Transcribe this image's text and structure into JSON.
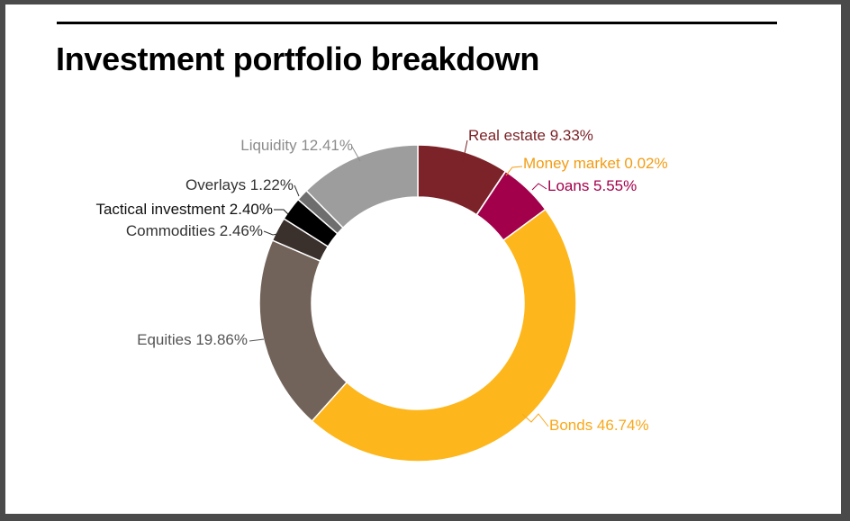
{
  "title": "Investment portfolio breakdown",
  "chart_data": {
    "type": "pie",
    "donut": true,
    "title": "Investment portfolio breakdown",
    "legend": "none",
    "slices": [
      {
        "label": "Real estate",
        "display": "Real estate 9.33%",
        "value": 9.33,
        "color": "#7b2328"
      },
      {
        "label": "Money market",
        "display": "Money market 0.02%",
        "value": 0.02,
        "color": "#f39c12"
      },
      {
        "label": "Loans",
        "display": "Loans 5.55%",
        "value": 5.55,
        "color": "#a3004b"
      },
      {
        "label": "Bonds",
        "display": "Bonds 46.74%",
        "value": 46.74,
        "color": "#fdb71c"
      },
      {
        "label": "Equities",
        "display": "Equities 19.86%",
        "value": 19.86,
        "color": "#72635a"
      },
      {
        "label": "Commodities",
        "display": "Commodities 2.46%",
        "value": 2.46,
        "color": "#3a302c"
      },
      {
        "label": "Tactical investment",
        "display": "Tactical investment 2.40%",
        "value": 2.4,
        "color": "#000000"
      },
      {
        "label": "Overlays",
        "display": "Overlays 1.22%",
        "value": 1.22,
        "color": "#6e6e6e"
      },
      {
        "label": "Liquidity",
        "display": "Liquidity 12.41%",
        "value": 12.41,
        "color": "#9d9d9d"
      }
    ],
    "label_colors": {
      "Real estate": "#7b2328",
      "Money market": "#f39c12",
      "Loans": "#a3004b",
      "Bonds": "#f9a81a",
      "Equities": "#555555",
      "Commodities": "#333333",
      "Tactical investment": "#111111",
      "Overlays": "#333333",
      "Liquidity": "#8c8c8c"
    }
  }
}
